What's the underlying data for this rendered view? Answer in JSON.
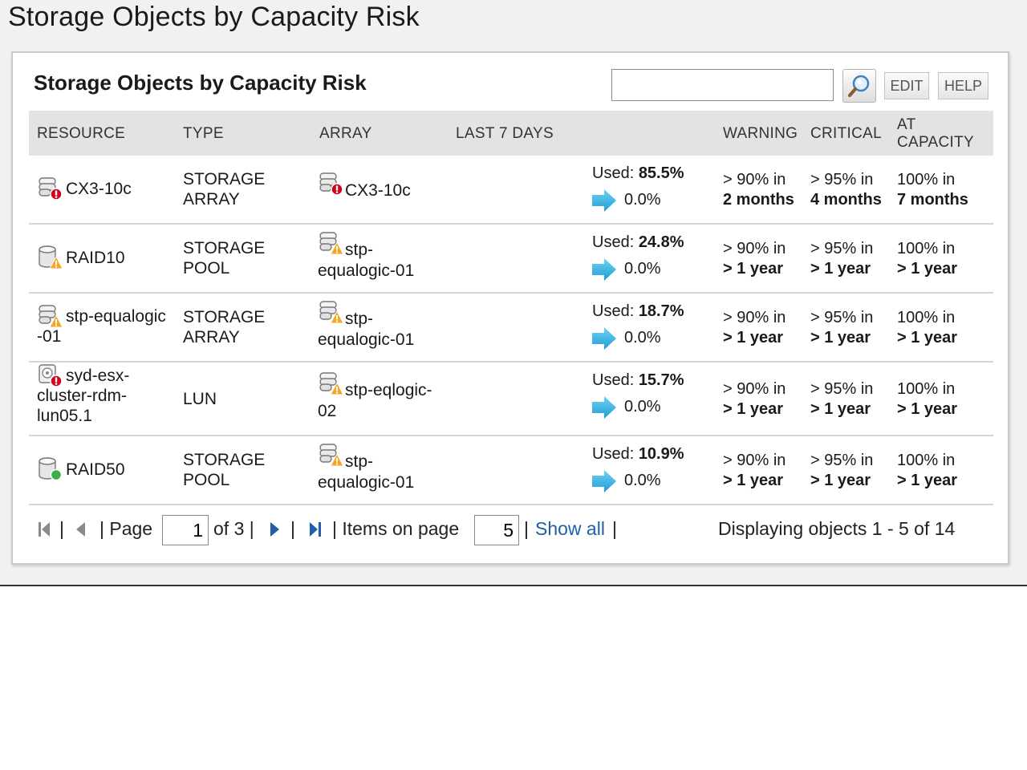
{
  "page": {
    "title": "Storage Objects by Capacity Risk"
  },
  "widget": {
    "title": "Storage Objects by Capacity Risk",
    "search": {
      "value": "",
      "placeholder": ""
    },
    "edit_label": "EDIT",
    "help_label": "HELP"
  },
  "table": {
    "columns": {
      "resource": "RESOURCE",
      "type": "TYPE",
      "array": "ARRAY",
      "last7": "LAST 7 DAYS",
      "warning": "WARNING",
      "critical": "CRITICAL",
      "at_capacity_1": "AT",
      "at_capacity_2": "CAPACITY"
    },
    "rows": [
      {
        "res_icon": "storage-array-critical-icon",
        "resource_lines": [
          "CX3-10c"
        ],
        "type_lines": [
          "STORAGE",
          "ARRAY"
        ],
        "array_icon": "storage-array-critical-icon",
        "array_lines": [
          "CX3-10c"
        ],
        "used_label": "Used:",
        "used_value": "85.5%",
        "trend_icon": "arrow-right-icon",
        "trend_value": "0.0%",
        "warning": {
          "prefix": "> 90% in",
          "when": "2 months"
        },
        "critical": {
          "prefix": "> 95% in",
          "when": "4 months"
        },
        "capacity": {
          "prefix": "100% in",
          "when": "7 months"
        }
      },
      {
        "res_icon": "storage-pool-warning-icon",
        "resource_lines": [
          "RAID10"
        ],
        "type_lines": [
          "STORAGE",
          "POOL"
        ],
        "array_icon": "storage-array-warning-icon",
        "array_lines": [
          "stp-",
          "equalogic-01"
        ],
        "used_label": "Used:",
        "used_value": "24.8%",
        "trend_icon": "arrow-right-icon",
        "trend_value": "0.0%",
        "warning": {
          "prefix": "> 90% in",
          "when": "> 1 year"
        },
        "critical": {
          "prefix": "> 95% in",
          "when": "> 1 year"
        },
        "capacity": {
          "prefix": "100% in",
          "when": "> 1 year"
        }
      },
      {
        "res_icon": "storage-array-warning-icon",
        "resource_lines": [
          "stp-equalogic",
          "-01"
        ],
        "type_lines": [
          "STORAGE",
          "ARRAY"
        ],
        "array_icon": "storage-array-warning-icon",
        "array_lines": [
          "stp-",
          "equalogic-01"
        ],
        "used_label": "Used:",
        "used_value": "18.7%",
        "trend_icon": "arrow-right-icon",
        "trend_value": "0.0%",
        "warning": {
          "prefix": "> 90% in",
          "when": "> 1 year"
        },
        "critical": {
          "prefix": "> 95% in",
          "when": "> 1 year"
        },
        "capacity": {
          "prefix": "100% in",
          "when": "> 1 year"
        }
      },
      {
        "res_icon": "lun-critical-icon",
        "resource_lines": [
          "syd-esx-",
          "cluster-rdm-",
          "lun05.1"
        ],
        "type_lines": [
          "LUN"
        ],
        "array_icon": "storage-array-warning-icon",
        "array_lines": [
          "stp-eqlogic-",
          "02"
        ],
        "used_label": "Used:",
        "used_value": "15.7%",
        "trend_icon": "arrow-right-icon",
        "trend_value": "0.0%",
        "warning": {
          "prefix": "> 90% in",
          "when": "> 1 year"
        },
        "critical": {
          "prefix": "> 95% in",
          "when": "> 1 year"
        },
        "capacity": {
          "prefix": "100% in",
          "when": "> 1 year"
        }
      },
      {
        "res_icon": "storage-pool-ok-icon",
        "resource_lines": [
          "RAID50"
        ],
        "type_lines": [
          "STORAGE",
          "POOL"
        ],
        "array_icon": "storage-array-warning-icon",
        "array_lines": [
          "stp-",
          "equalogic-01"
        ],
        "used_label": "Used:",
        "used_value": "10.9%",
        "trend_icon": "arrow-right-icon",
        "trend_value": "0.0%",
        "warning": {
          "prefix": "> 90% in",
          "when": "> 1 year"
        },
        "critical": {
          "prefix": "> 95% in",
          "when": "> 1 year"
        },
        "capacity": {
          "prefix": "100% in",
          "when": "> 1 year"
        }
      }
    ]
  },
  "pager": {
    "sep": "|",
    "page_label": "| Page",
    "page_value": "1",
    "of_label": "of 3 |",
    "items_label": "| Items on page",
    "items_value": "5",
    "sep_after_items": "|",
    "show_all": "Show all",
    "sep_end": "|",
    "displaying": "Displaying objects 1 - 5 of 14"
  }
}
